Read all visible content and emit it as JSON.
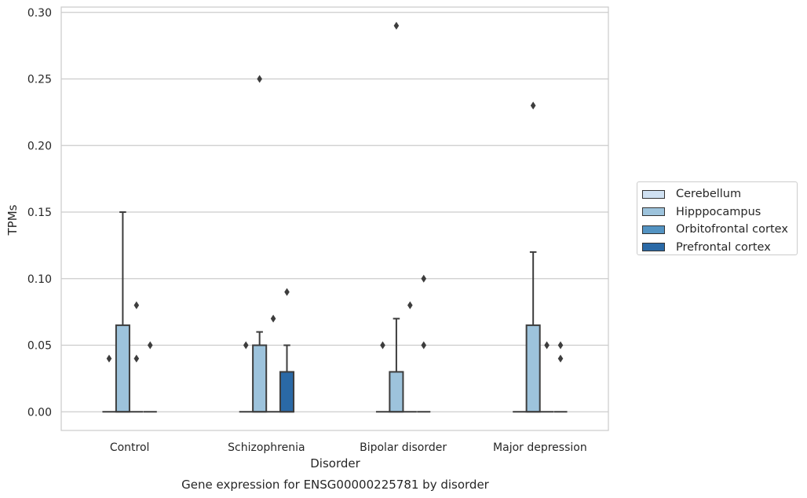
{
  "chart_data": {
    "type": "box",
    "ylabel": "TPMs",
    "xlabel": "Disorder",
    "caption": "Gene expression for ENSG00000225781 by disorder",
    "ylim": [
      -0.014,
      0.304
    ],
    "yticks": [
      0.0,
      0.05,
      0.1,
      0.15,
      0.2,
      0.25,
      0.3
    ],
    "ytick_labels": [
      "0.00",
      "0.05",
      "0.10",
      "0.15",
      "0.20",
      "0.25",
      "0.30"
    ],
    "grid": "horizontal",
    "legend_position": "right",
    "categories": [
      "Control",
      "Schizophrenia",
      "Bipolar disorder",
      "Major depression"
    ],
    "series": [
      {
        "name": "Cerebellum",
        "color": "#d0e1f2",
        "boxes": [
          {
            "q1": 0.0,
            "median": 0.0,
            "q3": 0.0,
            "whisker_low": 0.0,
            "whisker_high": 0.0,
            "outliers": [
              0.04
            ]
          },
          {
            "q1": 0.0,
            "median": 0.0,
            "q3": 0.0,
            "whisker_low": 0.0,
            "whisker_high": 0.0,
            "outliers": [
              0.05
            ]
          },
          {
            "q1": 0.0,
            "median": 0.0,
            "q3": 0.0,
            "whisker_low": 0.0,
            "whisker_high": 0.0,
            "outliers": [
              0.05
            ]
          },
          {
            "q1": 0.0,
            "median": 0.0,
            "q3": 0.0,
            "whisker_low": 0.0,
            "whisker_high": 0.0,
            "outliers": []
          }
        ]
      },
      {
        "name": "Hipppocampus",
        "color": "#9dc3dc",
        "boxes": [
          {
            "q1": 0.0,
            "median": 0.0,
            "q3": 0.065,
            "whisker_low": 0.0,
            "whisker_high": 0.15,
            "outliers": []
          },
          {
            "q1": 0.0,
            "median": 0.0,
            "q3": 0.05,
            "whisker_low": 0.0,
            "whisker_high": 0.06,
            "outliers": [
              0.25
            ]
          },
          {
            "q1": 0.0,
            "median": 0.0,
            "q3": 0.03,
            "whisker_low": 0.0,
            "whisker_high": 0.07,
            "outliers": [
              0.29
            ]
          },
          {
            "q1": 0.0,
            "median": 0.0,
            "q3": 0.065,
            "whisker_low": 0.0,
            "whisker_high": 0.12,
            "outliers": [
              0.23
            ]
          }
        ]
      },
      {
        "name": "Orbitofrontal cortex",
        "color": "#5393c2",
        "boxes": [
          {
            "q1": 0.0,
            "median": 0.0,
            "q3": 0.0,
            "whisker_low": 0.0,
            "whisker_high": 0.0,
            "outliers": [
              0.08,
              0.04
            ]
          },
          {
            "q1": 0.0,
            "median": 0.0,
            "q3": 0.0,
            "whisker_low": 0.0,
            "whisker_high": 0.0,
            "outliers": [
              0.07
            ]
          },
          {
            "q1": 0.0,
            "median": 0.0,
            "q3": 0.0,
            "whisker_low": 0.0,
            "whisker_high": 0.0,
            "outliers": [
              0.08
            ]
          },
          {
            "q1": 0.0,
            "median": 0.0,
            "q3": 0.0,
            "whisker_low": 0.0,
            "whisker_high": 0.0,
            "outliers": [
              0.05
            ]
          }
        ]
      },
      {
        "name": "Prefrontal cortex",
        "color": "#2a69a6",
        "boxes": [
          {
            "q1": 0.0,
            "median": 0.0,
            "q3": 0.0,
            "whisker_low": 0.0,
            "whisker_high": 0.0,
            "outliers": [
              0.05
            ]
          },
          {
            "q1": 0.0,
            "median": 0.0,
            "q3": 0.03,
            "whisker_low": 0.0,
            "whisker_high": 0.05,
            "outliers": [
              0.09
            ]
          },
          {
            "q1": 0.0,
            "median": 0.0,
            "q3": 0.0,
            "whisker_low": 0.0,
            "whisker_high": 0.0,
            "outliers": [
              0.1,
              0.05
            ]
          },
          {
            "q1": 0.0,
            "median": 0.0,
            "q3": 0.0,
            "whisker_low": 0.0,
            "whisker_high": 0.0,
            "outliers": [
              0.05,
              0.04
            ]
          }
        ]
      }
    ]
  }
}
